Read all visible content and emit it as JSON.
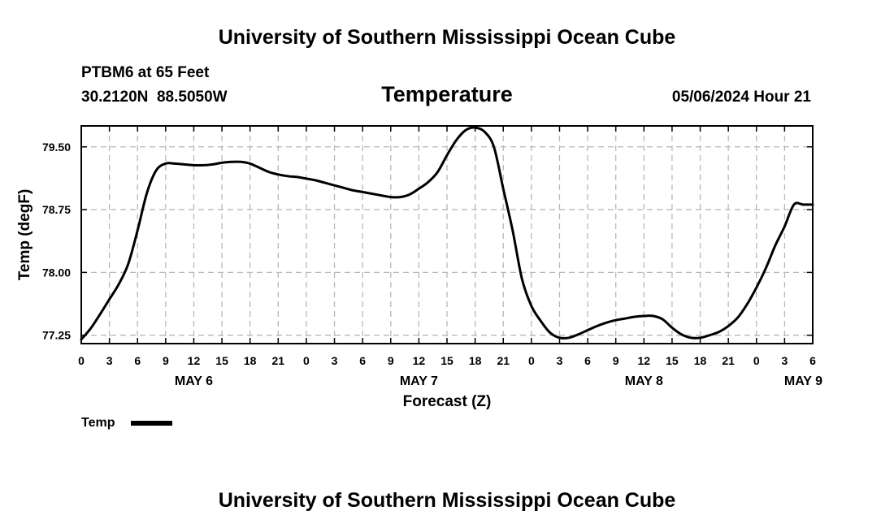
{
  "page": {
    "title": "University of Southern Mississippi Ocean Cube",
    "footer_title": "University of Southern Mississippi Ocean Cube",
    "station": "PTBM6 at 65 Feet",
    "location": "30.2120N  88.5050W",
    "run_time": "05/06/2024 Hour 21"
  },
  "chart_data": {
    "type": "line",
    "title": "Temperature",
    "xlabel": "Forecast (Z)",
    "ylabel": "Temp (degF)",
    "ylim": [
      77.15,
      79.75
    ],
    "xlim": [
      0,
      78
    ],
    "grid": true,
    "x_unit": "hours since May 6 00Z",
    "x_tick_labels": [
      "0",
      "3",
      "6",
      "9",
      "12",
      "15",
      "18",
      "21",
      "0",
      "3",
      "6",
      "9",
      "12",
      "15",
      "18",
      "21",
      "0",
      "3",
      "6",
      "9",
      "12",
      "15",
      "18",
      "21",
      "0",
      "3",
      "6"
    ],
    "y_ticks": [
      77.25,
      78.0,
      78.75,
      79.5
    ],
    "y_tick_labels": [
      "77.25",
      "78.00",
      "78.75",
      "79.50"
    ],
    "date_labels": [
      {
        "label": "MAY 6",
        "hour": 12
      },
      {
        "label": "MAY 7",
        "hour": 36
      },
      {
        "label": "MAY 8",
        "hour": 60
      },
      {
        "label": "MAY 9",
        "hour": 77
      }
    ],
    "legend": [
      {
        "name": "Temp",
        "color": "#000000"
      }
    ],
    "series": [
      {
        "name": "Temp",
        "color": "#000000",
        "x": [
          0,
          1,
          2,
          3,
          4,
          5,
          6,
          7,
          8,
          9,
          10,
          11,
          12,
          13,
          14,
          15,
          16,
          17,
          18,
          19,
          20,
          21,
          22,
          23,
          24,
          25,
          26,
          27,
          28,
          29,
          30,
          31,
          32,
          33,
          34,
          35,
          36,
          37,
          38,
          39,
          40,
          41,
          42,
          43,
          44,
          45,
          46,
          47,
          48,
          49,
          50,
          51,
          52,
          53,
          54,
          55,
          56,
          57,
          58,
          59,
          60,
          61,
          62,
          63,
          64,
          65,
          66,
          67,
          68,
          69,
          70,
          71,
          72,
          73,
          74,
          75,
          76,
          77,
          78
        ],
        "values": [
          77.2,
          77.33,
          77.5,
          77.68,
          77.86,
          78.1,
          78.5,
          78.95,
          79.22,
          79.3,
          79.3,
          79.29,
          79.28,
          79.28,
          79.29,
          79.31,
          79.32,
          79.32,
          79.3,
          79.25,
          79.2,
          79.17,
          79.15,
          79.14,
          79.12,
          79.1,
          79.07,
          79.04,
          79.01,
          78.98,
          78.96,
          78.94,
          78.92,
          78.9,
          78.9,
          78.93,
          79.0,
          79.08,
          79.2,
          79.4,
          79.58,
          79.7,
          79.73,
          79.68,
          79.5,
          79.0,
          78.5,
          77.92,
          77.6,
          77.42,
          77.28,
          77.22,
          77.22,
          77.26,
          77.31,
          77.36,
          77.4,
          77.43,
          77.45,
          77.47,
          77.48,
          77.48,
          77.44,
          77.34,
          77.26,
          77.22,
          77.22,
          77.25,
          77.29,
          77.36,
          77.46,
          77.62,
          77.82,
          78.05,
          78.32,
          78.55,
          78.81,
          78.81,
          78.81
        ]
      }
    ]
  }
}
